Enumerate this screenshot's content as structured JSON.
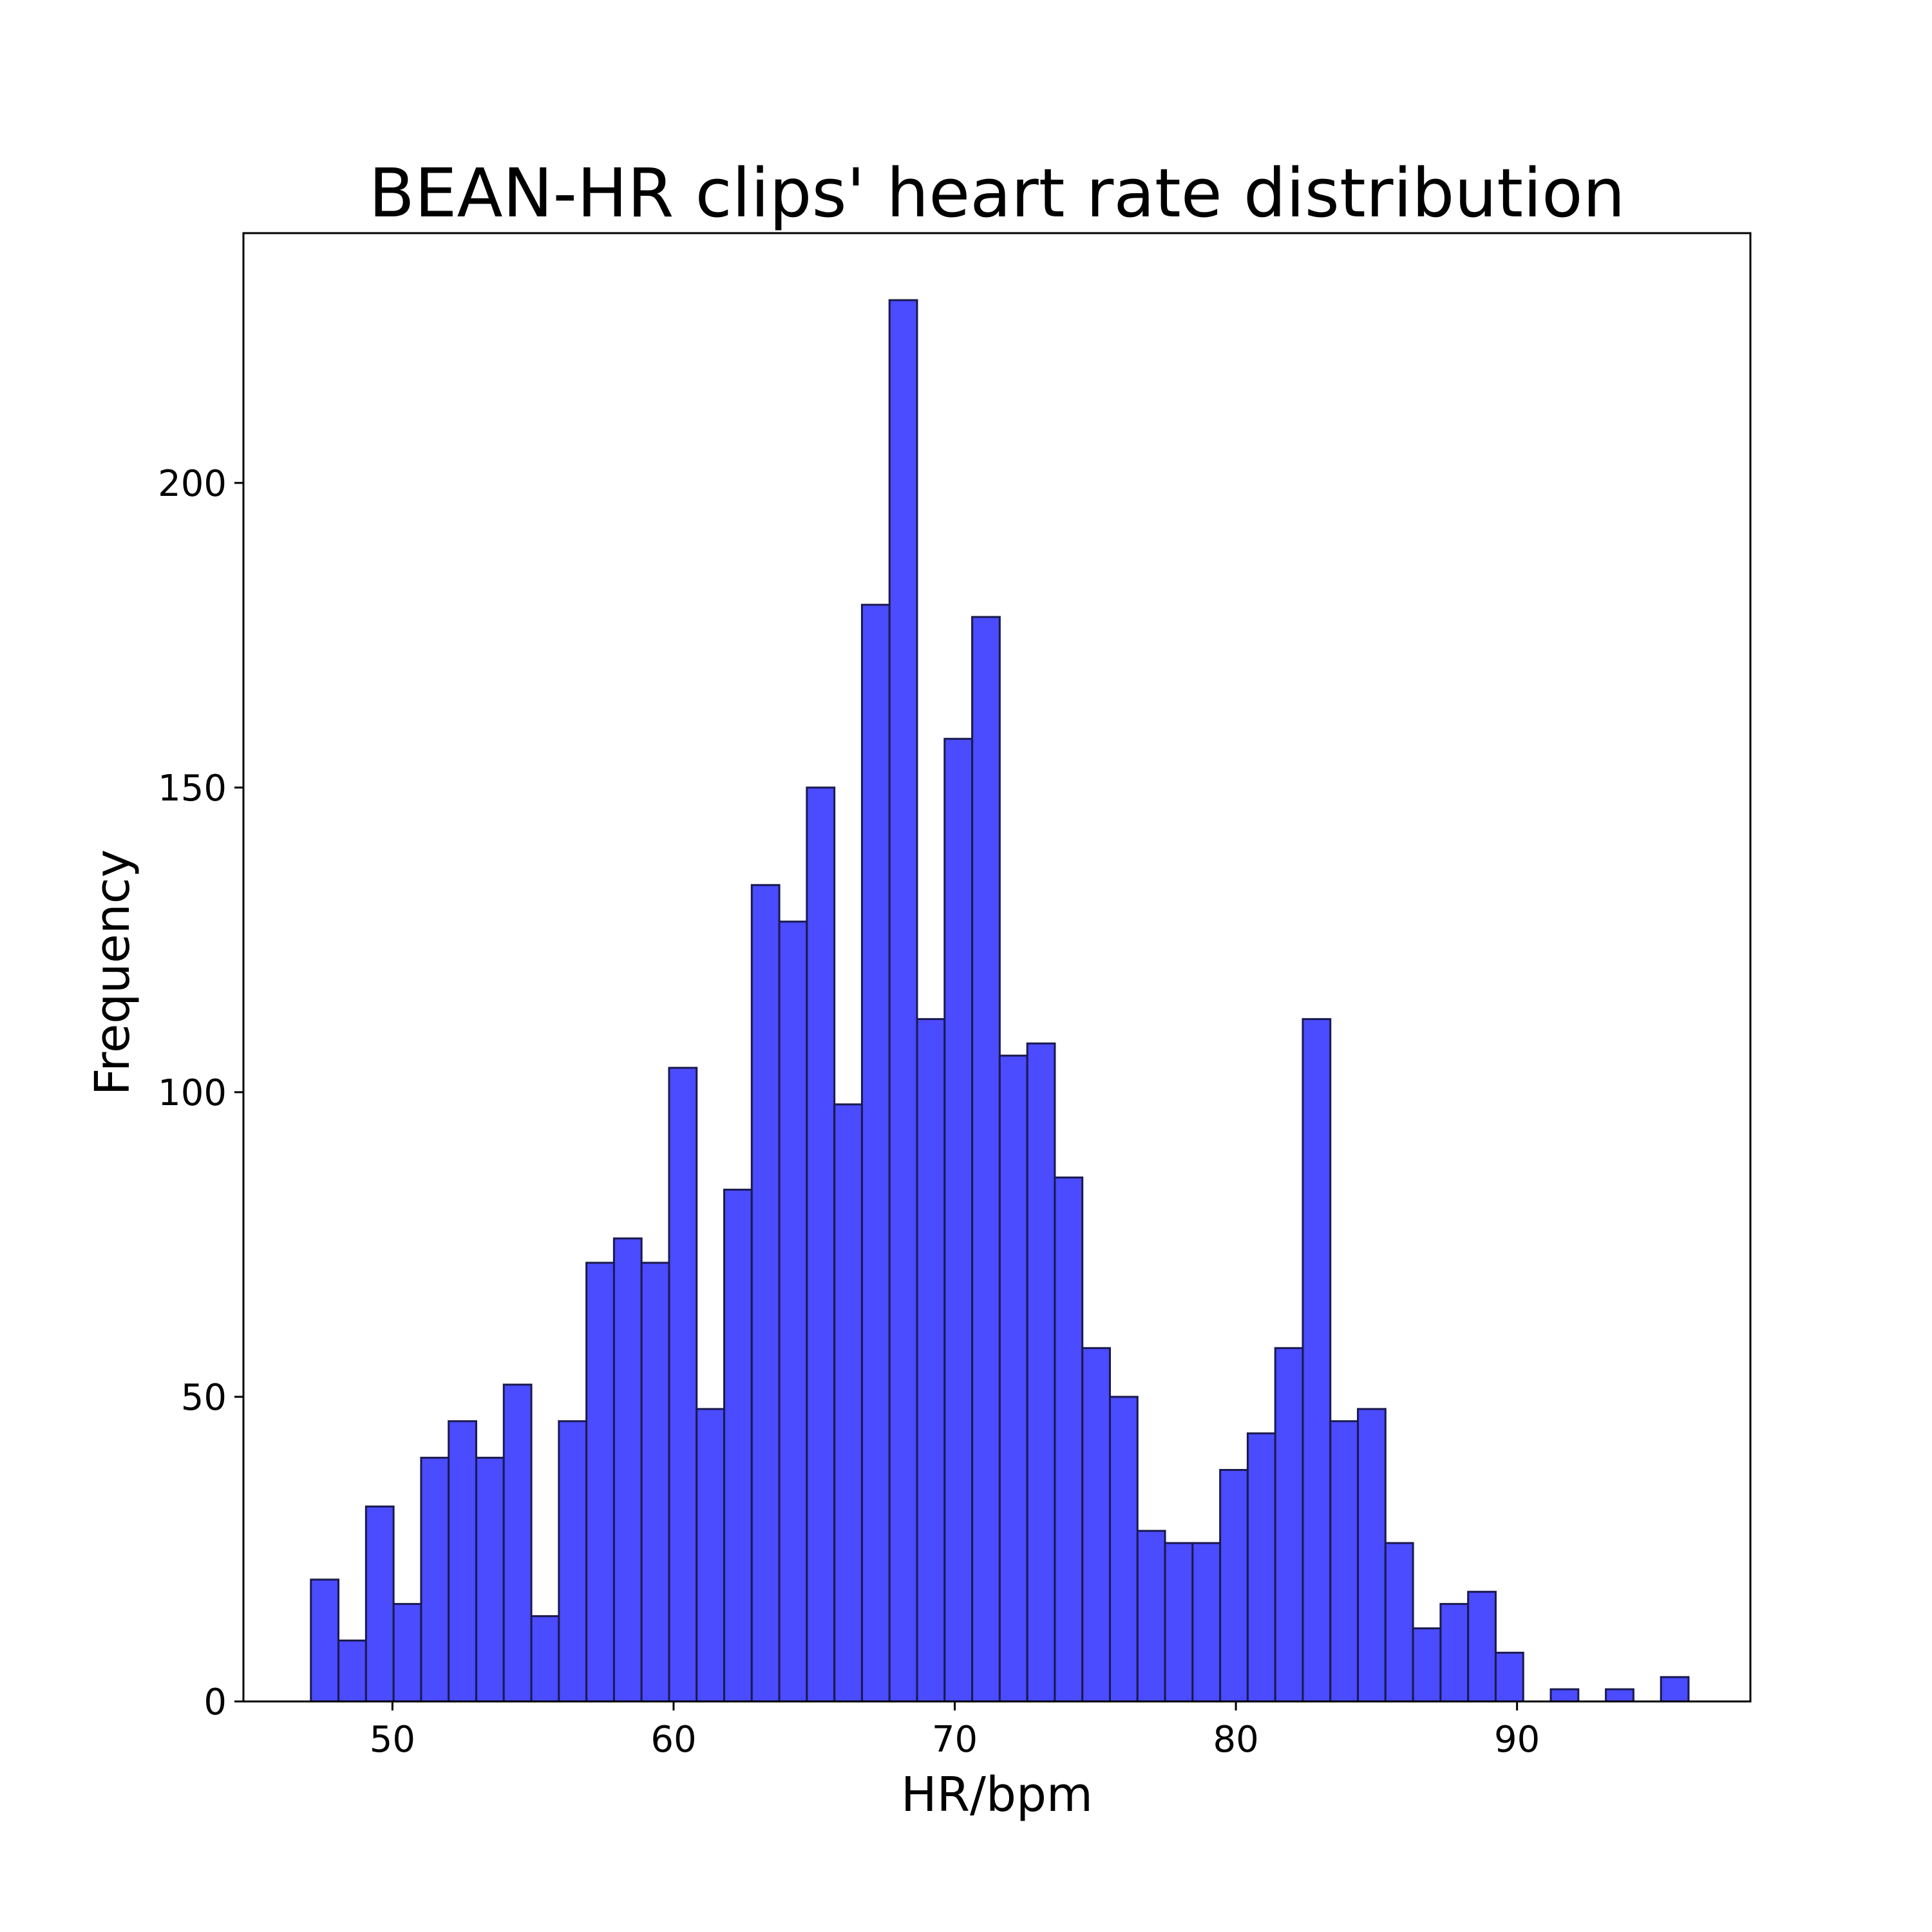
{
  "chart_data": {
    "type": "bar",
    "title": "BEAN-HR clips' heart rate distribution",
    "xlabel": "HR/bpm",
    "ylabel": "Frequency",
    "xlim": [
      44.7,
      98.3
    ],
    "ylim": [
      0,
      241
    ],
    "xticks": [
      50,
      60,
      70,
      80,
      90
    ],
    "yticks": [
      0,
      50,
      100,
      150,
      200
    ],
    "grid": false,
    "legend": "none",
    "bar_fill": "#4b4bff",
    "bar_edge": "#1a1a4d",
    "bin_edges": [
      47.1,
      48.08,
      49.06,
      50.04,
      51.02,
      52.0,
      52.98,
      53.96,
      54.94,
      55.92,
      56.9,
      57.88,
      58.86,
      59.84,
      60.82,
      61.8,
      62.78,
      63.76,
      64.74,
      65.72,
      66.7,
      67.68,
      68.66,
      69.64,
      70.62,
      71.6,
      72.58,
      73.56,
      74.54,
      75.52,
      76.5,
      77.48,
      78.46,
      79.44,
      80.42,
      81.4,
      82.38,
      83.36,
      84.34,
      85.32,
      86.3,
      87.28,
      88.26,
      89.24,
      90.22,
      91.2,
      92.18,
      93.16,
      94.14,
      95.12,
      96.1
    ],
    "counts": [
      20,
      10,
      32,
      16,
      40,
      46,
      40,
      52,
      14,
      46,
      72,
      76,
      72,
      104,
      48,
      84,
      134,
      128,
      150,
      98,
      180,
      230,
      112,
      158,
      178,
      106,
      108,
      86,
      58,
      50,
      28,
      26,
      26,
      38,
      44,
      58,
      112,
      46,
      48,
      26,
      12,
      16,
      18,
      8,
      0,
      2,
      0,
      2,
      0,
      4
    ]
  }
}
